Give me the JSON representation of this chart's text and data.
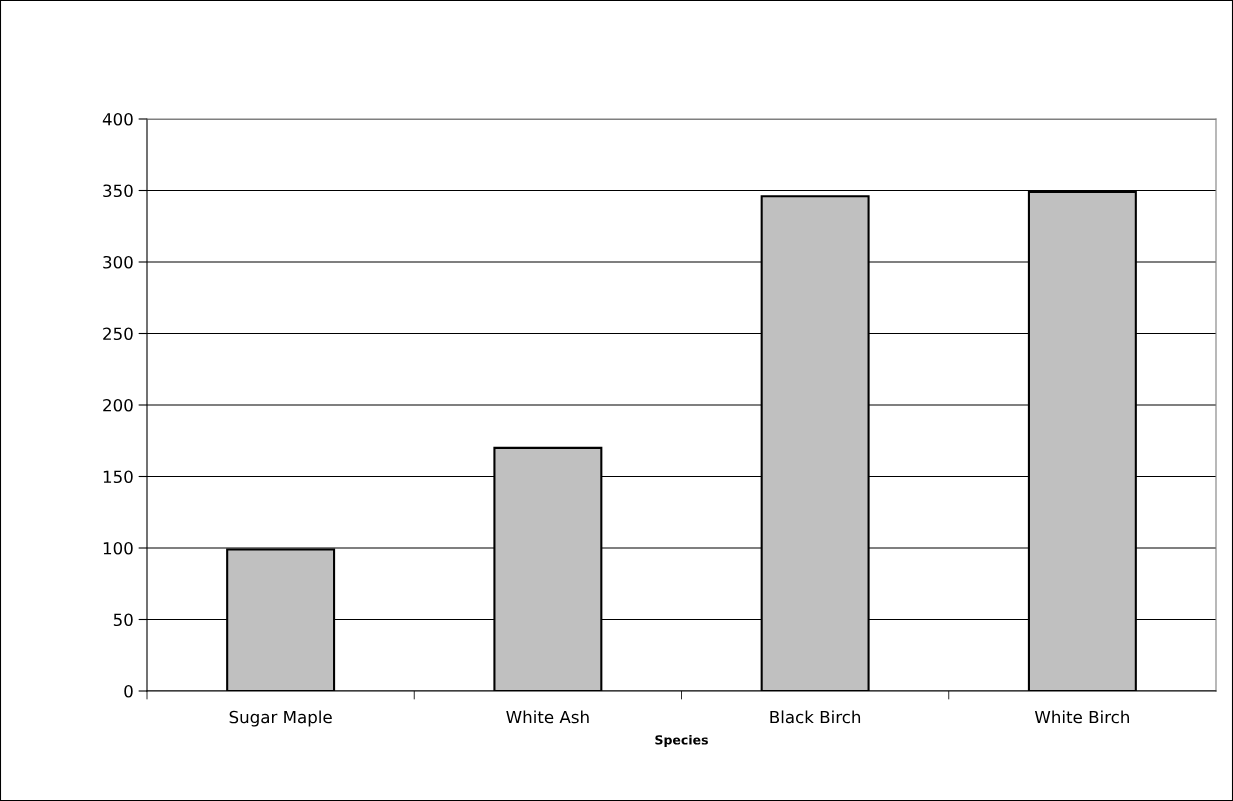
{
  "chart_data": {
    "type": "bar",
    "xlabel": "Species",
    "categories": [
      "Sugar Maple",
      "White Ash",
      "Black Birch",
      "White Birch"
    ],
    "values": [
      99,
      170,
      346,
      349
    ],
    "color": "#c0c0c0",
    "ylim": [
      0,
      400
    ],
    "yticks": [
      0,
      50,
      100,
      150,
      200,
      250,
      300,
      350,
      400
    ],
    "grid": "y",
    "legend": false
  }
}
